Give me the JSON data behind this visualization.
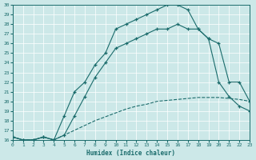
{
  "xlabel": "Humidex (Indice chaleur)",
  "xlim": [
    0,
    23
  ],
  "ylim": [
    16,
    30
  ],
  "yticks": [
    16,
    17,
    18,
    19,
    20,
    21,
    22,
    23,
    24,
    25,
    26,
    27,
    28,
    29,
    30
  ],
  "xticks": [
    0,
    1,
    2,
    3,
    4,
    5,
    6,
    7,
    8,
    9,
    10,
    11,
    12,
    13,
    14,
    15,
    16,
    17,
    18,
    19,
    20,
    21,
    22,
    23
  ],
  "bg_color": "#cce8e8",
  "line_color": "#1a6b6b",
  "line1_x": [
    0,
    1,
    2,
    3,
    4,
    5,
    6,
    7,
    8,
    9,
    10,
    11,
    12,
    13,
    14,
    15,
    16,
    17,
    18,
    19,
    20,
    21,
    22,
    23
  ],
  "line1_y": [
    16.3,
    16.0,
    16.0,
    16.3,
    16.0,
    18.5,
    21.0,
    22.0,
    23.8,
    25.0,
    27.5,
    28.0,
    28.5,
    29.0,
    29.5,
    30.0,
    30.0,
    29.5,
    27.5,
    26.5,
    22.0,
    20.5,
    19.5,
    19.0
  ],
  "line2_x": [
    0,
    1,
    2,
    3,
    4,
    5,
    6,
    7,
    8,
    9,
    10,
    11,
    12,
    13,
    14,
    15,
    16,
    17,
    18,
    19,
    20,
    21,
    22,
    23
  ],
  "line2_y": [
    16.3,
    16.0,
    16.0,
    16.3,
    16.0,
    16.5,
    18.5,
    20.5,
    22.5,
    24.0,
    25.5,
    26.0,
    26.5,
    27.0,
    27.5,
    27.5,
    28.0,
    27.5,
    27.5,
    26.5,
    26.0,
    22.0,
    22.0,
    20.0
  ],
  "line3_x": [
    0,
    1,
    2,
    3,
    4,
    5,
    6,
    7,
    8,
    9,
    10,
    11,
    12,
    13,
    14,
    15,
    16,
    17,
    18,
    19,
    20,
    21,
    22,
    23
  ],
  "line3_y": [
    16.3,
    16.0,
    16.0,
    16.3,
    16.0,
    16.5,
    17.0,
    17.5,
    18.0,
    18.4,
    18.8,
    19.2,
    19.5,
    19.7,
    20.0,
    20.1,
    20.2,
    20.3,
    20.4,
    20.4,
    20.4,
    20.3,
    20.2,
    20.0
  ]
}
